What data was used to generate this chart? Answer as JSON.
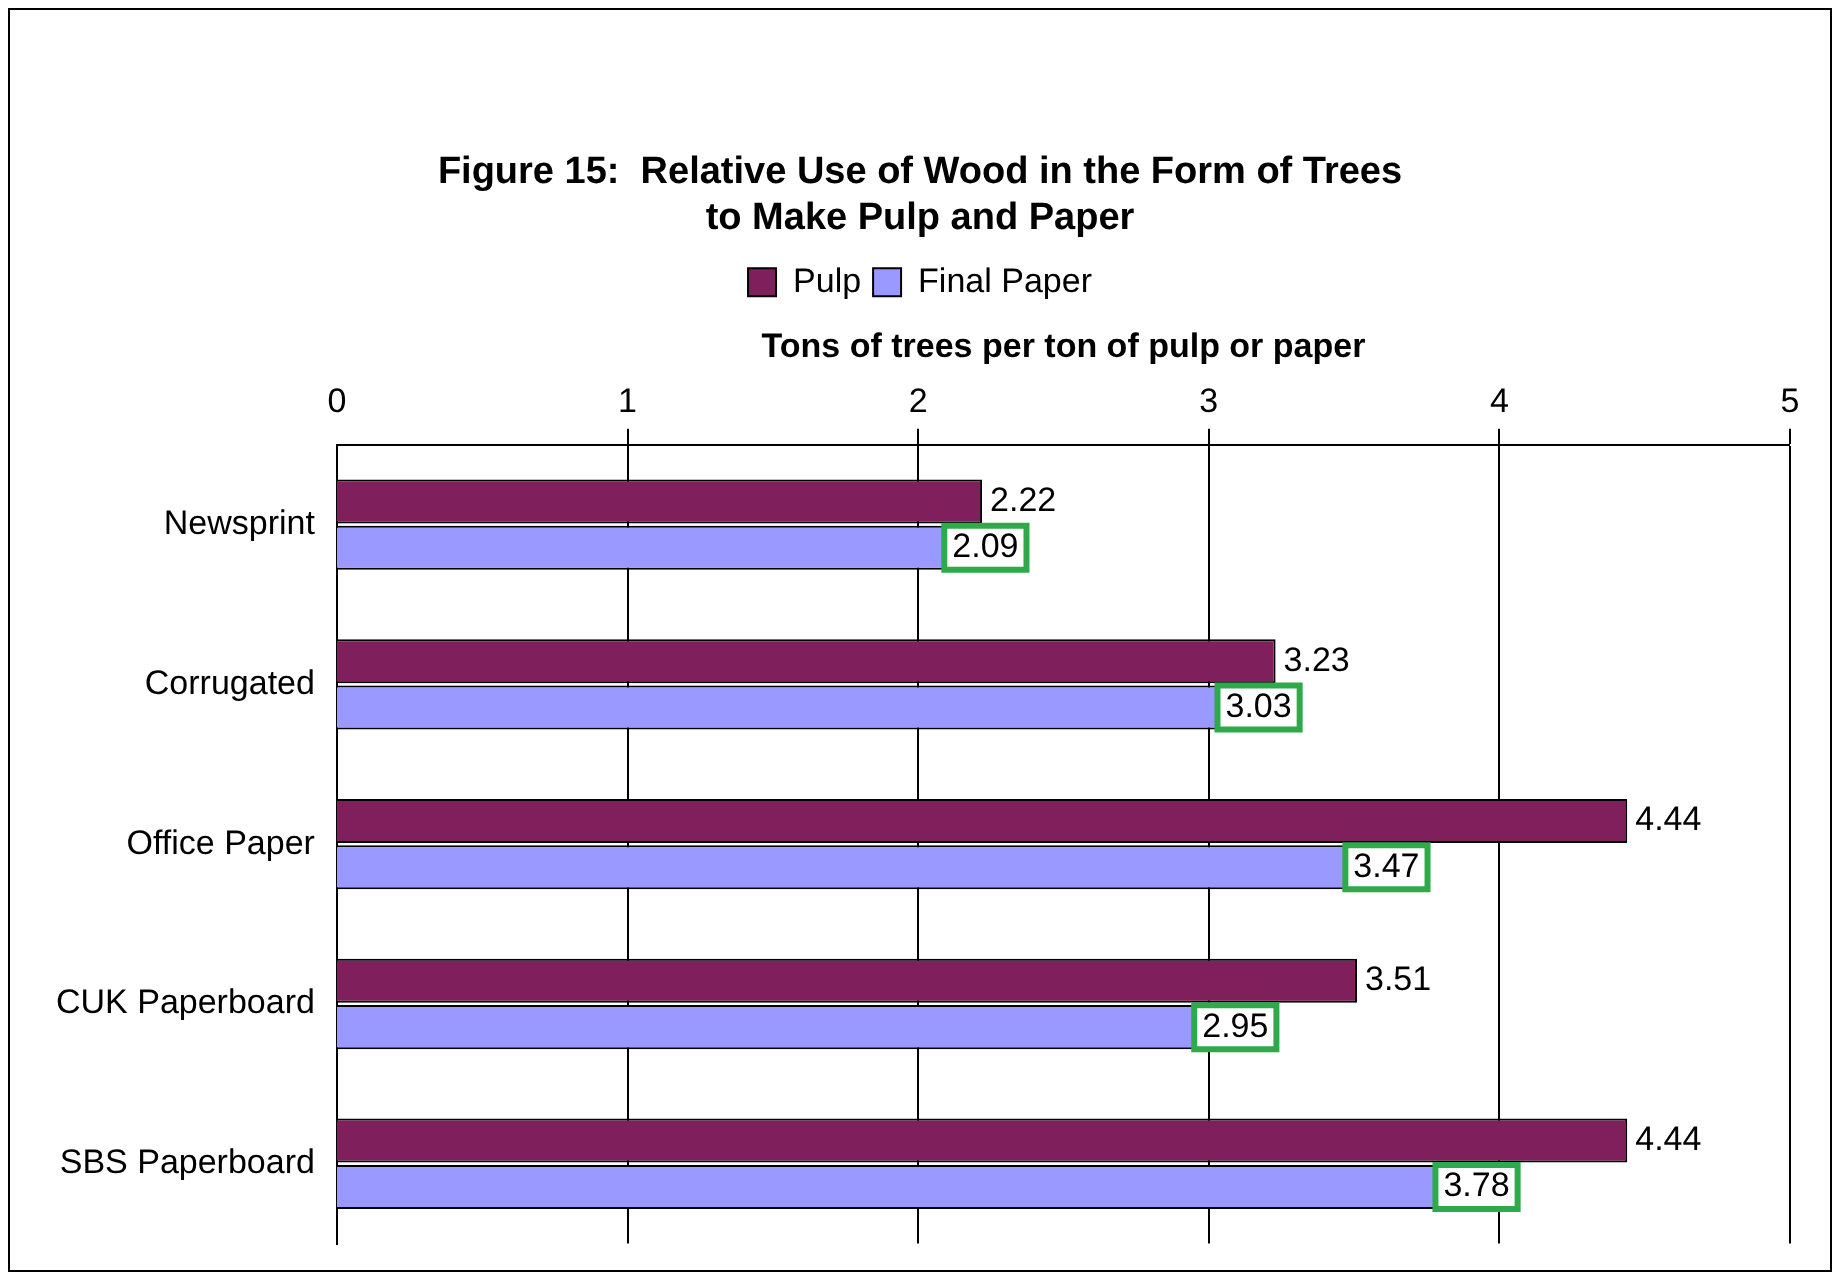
{
  "chart_data": {
    "type": "bar",
    "orientation": "horizontal",
    "title": [
      "Figure 15:  Relative Use of Wood in the Form of Trees",
      "to Make Pulp and Paper"
    ],
    "xlabel": "Tons of trees per ton of pulp or paper",
    "categories": [
      "Newsprint",
      "Corrugated",
      "Office Paper",
      "CUK Paperboard",
      "SBS Paperboard"
    ],
    "series": [
      {
        "name": "Pulp",
        "color": "#7f1f5c",
        "values": [
          2.22,
          3.23,
          4.44,
          3.51,
          4.44
        ]
      },
      {
        "name": "Final Paper",
        "color": "#9999ff",
        "values": [
          2.09,
          3.03,
          3.47,
          2.95,
          3.78
        ]
      }
    ],
    "xlim": [
      0,
      5
    ],
    "xticks": [
      0,
      1,
      2,
      3,
      4,
      5
    ],
    "grid": "x",
    "legend": "top",
    "data_labels": true
  }
}
